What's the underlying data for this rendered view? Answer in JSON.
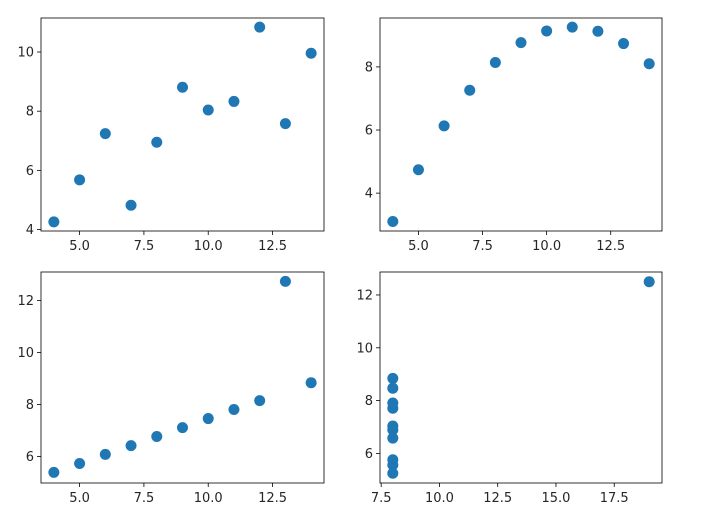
{
  "chart_data": [
    {
      "type": "scatter",
      "color": "#1f77b4",
      "xlim": [
        3.5,
        14.5
      ],
      "ylim": [
        3.95,
        11.15
      ],
      "x_ticks": [
        5.0,
        7.5,
        10.0,
        12.5
      ],
      "x_tick_labels": [
        "5.0",
        "7.5",
        "10.0",
        "12.5"
      ],
      "y_ticks": [
        4,
        6,
        8,
        10
      ],
      "y_tick_labels": [
        "4",
        "6",
        "8",
        "10"
      ],
      "x": [
        10,
        8,
        13,
        9,
        11,
        14,
        6,
        4,
        12,
        7,
        5
      ],
      "y": [
        8.04,
        6.95,
        7.58,
        8.81,
        8.33,
        9.96,
        7.24,
        4.26,
        10.84,
        4.82,
        5.68
      ]
    },
    {
      "type": "scatter",
      "color": "#1f77b4",
      "xlim": [
        3.5,
        14.5
      ],
      "ylim": [
        2.8,
        9.55
      ],
      "x_ticks": [
        5.0,
        7.5,
        10.0,
        12.5
      ],
      "x_tick_labels": [
        "5.0",
        "7.5",
        "10.0",
        "12.5"
      ],
      "y_ticks": [
        4,
        6,
        8
      ],
      "y_tick_labels": [
        "4",
        "6",
        "8"
      ],
      "x": [
        10,
        8,
        13,
        9,
        11,
        14,
        6,
        4,
        12,
        7,
        5
      ],
      "y": [
        9.14,
        8.14,
        8.74,
        8.77,
        9.26,
        8.1,
        6.13,
        3.1,
        9.13,
        7.26,
        4.74
      ]
    },
    {
      "type": "scatter",
      "color": "#1f77b4",
      "xlim": [
        3.5,
        14.5
      ],
      "ylim": [
        4.98,
        13.1
      ],
      "x_ticks": [
        5.0,
        7.5,
        10.0,
        12.5
      ],
      "x_tick_labels": [
        "5.0",
        "7.5",
        "10.0",
        "12.5"
      ],
      "y_ticks": [
        6,
        8,
        10,
        12
      ],
      "y_tick_labels": [
        "6",
        "8",
        "10",
        "12"
      ],
      "x": [
        10,
        8,
        13,
        9,
        11,
        14,
        6,
        4,
        12,
        7,
        5
      ],
      "y": [
        7.46,
        6.77,
        12.74,
        7.11,
        7.81,
        8.84,
        6.08,
        5.39,
        8.15,
        6.42,
        5.73
      ]
    },
    {
      "type": "scatter",
      "color": "#1f77b4",
      "xlim": [
        7.45,
        19.55
      ],
      "ylim": [
        4.88,
        12.87
      ],
      "x_ticks": [
        7.5,
        10.0,
        12.5,
        15.0,
        17.5
      ],
      "x_tick_labels": [
        "7.5",
        "10.0",
        "12.5",
        "15.0",
        "17.5"
      ],
      "y_ticks": [
        6,
        8,
        10,
        12
      ],
      "y_tick_labels": [
        "6",
        "8",
        "10",
        "12"
      ],
      "x": [
        8,
        8,
        8,
        8,
        8,
        8,
        8,
        19,
        8,
        8,
        8
      ],
      "y": [
        6.58,
        5.76,
        7.71,
        8.84,
        8.47,
        7.04,
        5.25,
        12.5,
        5.56,
        7.91,
        6.89
      ]
    }
  ]
}
